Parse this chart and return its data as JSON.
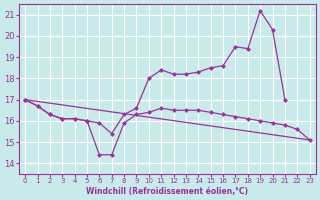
{
  "xlabel": "Windchill (Refroidissement éolien,°C)",
  "xlim": [
    -0.5,
    23.5
  ],
  "ylim": [
    13.5,
    21.5
  ],
  "yticks": [
    14,
    15,
    16,
    17,
    18,
    19,
    20,
    21
  ],
  "xticks": [
    0,
    1,
    2,
    3,
    4,
    5,
    6,
    7,
    8,
    9,
    10,
    11,
    12,
    13,
    14,
    15,
    16,
    17,
    18,
    19,
    20,
    21,
    22,
    23
  ],
  "bg_color": "#c8eaea",
  "grid_color": "#b8d8d8",
  "line_color": "#993399",
  "straight_line_x": [
    0,
    23
  ],
  "straight_line_y": [
    17.0,
    15.1
  ],
  "curve_dip_x": [
    0,
    1,
    2,
    3,
    4,
    5,
    6,
    7,
    8,
    9,
    10,
    11,
    12,
    13,
    14,
    15,
    16,
    17,
    18,
    19,
    20,
    21,
    22,
    23
  ],
  "curve_dip_y": [
    17.0,
    16.7,
    16.3,
    16.1,
    16.1,
    16.0,
    14.4,
    14.4,
    15.9,
    16.3,
    16.4,
    16.6,
    16.5,
    16.5,
    16.5,
    16.4,
    16.3,
    16.2,
    16.1,
    16.0,
    15.9,
    15.8,
    15.6,
    15.1
  ],
  "curve_upper_x": [
    0,
    1,
    2,
    3,
    4,
    5,
    6,
    7,
    8,
    9,
    10,
    11,
    12,
    13,
    14,
    15,
    16,
    17,
    18,
    19,
    20,
    21,
    22,
    23
  ],
  "curve_upper_y": [
    17.0,
    16.7,
    16.3,
    16.1,
    16.1,
    16.0,
    15.9,
    15.4,
    16.3,
    16.6,
    18.0,
    18.4,
    18.2,
    18.2,
    18.3,
    18.5,
    18.6,
    19.5,
    19.4,
    21.2,
    20.3,
    17.0,
    null,
    null
  ]
}
